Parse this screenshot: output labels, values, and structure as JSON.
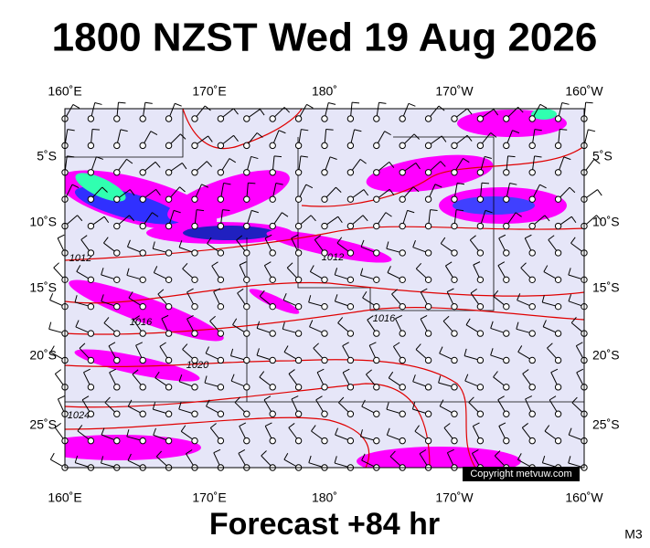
{
  "title": "1800 NZST Wed 19 Aug 2026",
  "longitude_labels": [
    "160˚E",
    "170˚E",
    "180˚",
    "170˚W",
    "160˚W"
  ],
  "latitude_labels": [
    "5˚S",
    "10˚S",
    "15˚S",
    "20˚S",
    "25˚S"
  ],
  "isobar_labels": [
    "1012",
    "1012",
    "1016",
    "1016",
    "1020",
    "1024"
  ],
  "copyright": "Copyright metvuw.com",
  "footer": "Forecast +84 hr",
  "model": "M3"
}
